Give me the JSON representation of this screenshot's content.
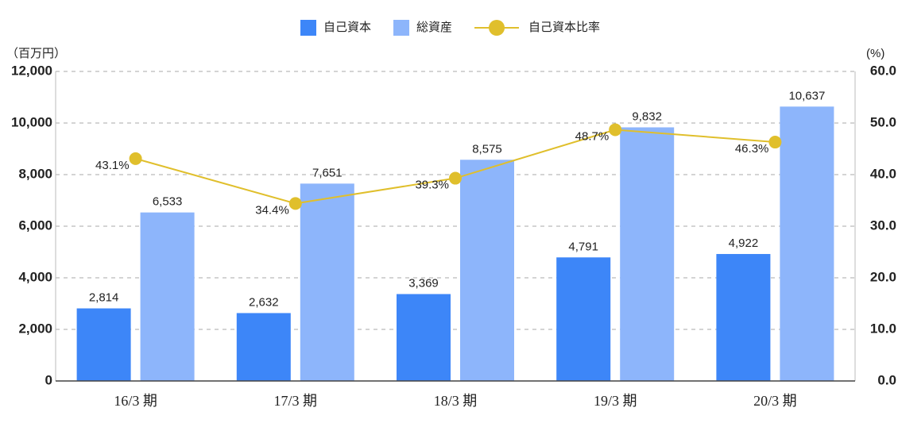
{
  "chart_data": {
    "type": "bar",
    "y_unit": "（百万円）",
    "y2_unit": "(%)",
    "categories": [
      "16/3 期",
      "17/3 期",
      "18/3 期",
      "19/3 期",
      "20/3 期"
    ],
    "series": [
      {
        "name": "自己資本",
        "type": "bar",
        "color": "#3d86f8",
        "values": [
          2814,
          2632,
          3369,
          4791,
          4922
        ],
        "value_labels": [
          "2,814",
          "2,632",
          "3,369",
          "4,791",
          "4,922"
        ]
      },
      {
        "name": "総資産",
        "type": "bar",
        "color": "#8db5fb",
        "values": [
          6533,
          7651,
          8575,
          9832,
          10637
        ],
        "value_labels": [
          "6,533",
          "7,651",
          "8,575",
          "9,832",
          "10,637"
        ]
      },
      {
        "name": "自己資本比率",
        "type": "line",
        "axis": "y2",
        "color": "#e0bf2c",
        "values": [
          43.1,
          34.4,
          39.3,
          48.7,
          46.3
        ],
        "value_labels": [
          "43.1%",
          "34.4%",
          "39.3%",
          "48.7%",
          "46.3%"
        ]
      }
    ],
    "ylim": [
      0,
      12000
    ],
    "yticks": [
      0,
      {
        "value": 2000,
        "label": "2,000"
      },
      {
        "value": 4000,
        "label": "4,000"
      },
      {
        "value": 6000,
        "label": "6,000"
      },
      {
        "value": 8000,
        "label": "8,000"
      },
      {
        "value": 10000,
        "label": "10,000"
      },
      {
        "value": 12000,
        "label": "12,000"
      }
    ],
    "y2lim": [
      0,
      60
    ],
    "y2ticks": [
      {
        "value": 0,
        "label": "0.0"
      },
      {
        "value": 10,
        "label": "10.0"
      },
      {
        "value": 20,
        "label": "20.0"
      },
      {
        "value": 30,
        "label": "30.0"
      },
      {
        "value": 40,
        "label": "40.0"
      },
      {
        "value": 50,
        "label": "50.0"
      },
      {
        "value": 60,
        "label": "60.0"
      }
    ],
    "grid": true
  }
}
